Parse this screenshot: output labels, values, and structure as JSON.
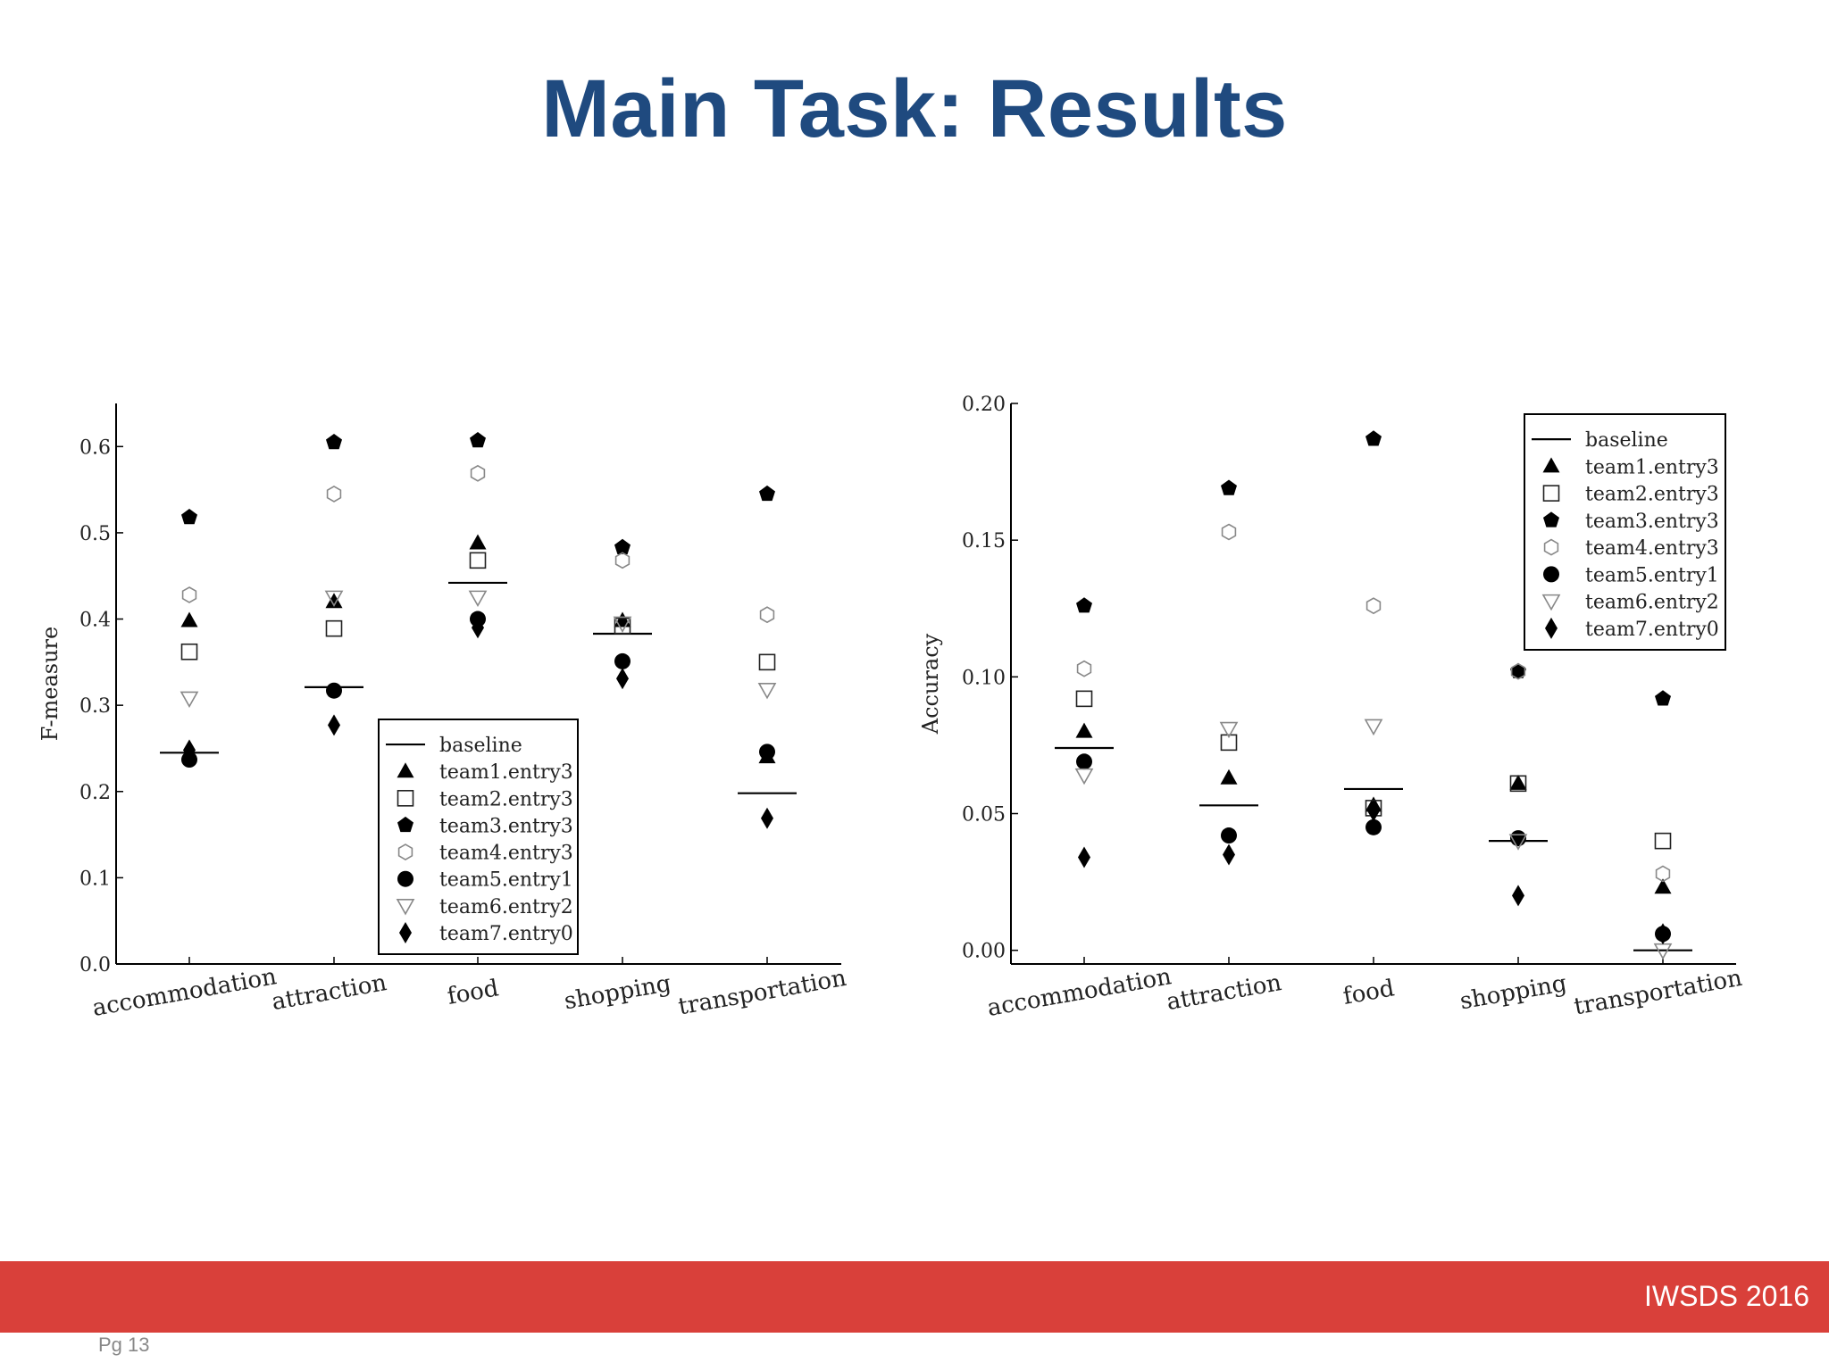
{
  "slide": {
    "title": "Main Task: Results",
    "conference": "IWSDS 2016",
    "page": "Pg 13"
  },
  "colors": {
    "title": "#1f4a7f",
    "footer_bar": "#d9403a",
    "filled_marker": "#000000",
    "hollow_marker": "#888888"
  },
  "chart_data": [
    {
      "type": "scatter",
      "title": "",
      "xlabel": "",
      "ylabel": "F-measure",
      "ylim": [
        0,
        0.65
      ],
      "yticks": [
        0.0,
        0.1,
        0.2,
        0.3,
        0.4,
        0.5,
        0.6
      ],
      "ytick_labels": [
        "0.0",
        "0.1",
        "0.2",
        "0.3",
        "0.4",
        "0.5",
        "0.6"
      ],
      "categories": [
        "accommodation",
        "attraction",
        "food",
        "shopping",
        "transportation"
      ],
      "legend_position": "lower-center",
      "grid": false,
      "series": [
        {
          "name": "baseline",
          "marker": "hline",
          "values": [
            0.245,
            0.321,
            0.442,
            0.383,
            0.198
          ]
        },
        {
          "name": "team1.entry3",
          "marker": "triangle-up-filled",
          "values": [
            0.398,
            0.42,
            0.488,
            0.398,
            0.24
          ]
        },
        {
          "name": "team2.entry3",
          "marker": "square-open",
          "values": [
            0.362,
            0.389,
            0.468,
            0.392,
            0.35
          ]
        },
        {
          "name": "team3.entry3",
          "marker": "pentagon-filled",
          "values": [
            0.518,
            0.605,
            0.607,
            0.483,
            0.545
          ]
        },
        {
          "name": "team4.entry3",
          "marker": "hexagon-open",
          "values": [
            0.428,
            0.545,
            0.569,
            0.468,
            0.405
          ]
        },
        {
          "name": "team5.entry1",
          "marker": "circle-filled",
          "values": [
            0.237,
            0.317,
            0.4,
            0.351,
            0.246
          ]
        },
        {
          "name": "team6.entry2",
          "marker": "triangle-down-open",
          "values": [
            0.308,
            0.425,
            0.425,
            0.395,
            0.318
          ]
        },
        {
          "name": "team7.entry0",
          "marker": "diamond-filled",
          "values": [
            0.248,
            0.277,
            0.39,
            0.331,
            0.169
          ]
        }
      ]
    },
    {
      "type": "scatter",
      "title": "",
      "xlabel": "",
      "ylabel": "Accuracy",
      "ylim": [
        -0.005,
        0.2
      ],
      "yticks": [
        0.0,
        0.05,
        0.1,
        0.15,
        0.2
      ],
      "ytick_labels": [
        "0.00",
        "0.05",
        "0.10",
        "0.15",
        "0.20"
      ],
      "categories": [
        "accommodation",
        "attraction",
        "food",
        "shopping",
        "transportation"
      ],
      "legend_position": "upper-right",
      "grid": false,
      "series": [
        {
          "name": "baseline",
          "marker": "hline",
          "values": [
            0.074,
            0.053,
            0.059,
            0.04,
            0.0
          ]
        },
        {
          "name": "team1.entry3",
          "marker": "triangle-up-filled",
          "values": [
            0.08,
            0.063,
            0.053,
            0.061,
            0.023
          ]
        },
        {
          "name": "team2.entry3",
          "marker": "square-open",
          "values": [
            0.092,
            0.076,
            0.052,
            0.061,
            0.04
          ]
        },
        {
          "name": "team3.entry3",
          "marker": "pentagon-filled",
          "values": [
            0.126,
            0.169,
            0.187,
            0.102,
            0.092
          ]
        },
        {
          "name": "team4.entry3",
          "marker": "hexagon-open",
          "values": [
            0.103,
            0.153,
            0.126,
            0.102,
            0.028
          ]
        },
        {
          "name": "team5.entry1",
          "marker": "circle-filled",
          "values": [
            0.069,
            0.042,
            0.045,
            0.041,
            0.006
          ]
        },
        {
          "name": "team6.entry2",
          "marker": "triangle-down-open",
          "values": [
            0.064,
            0.081,
            0.082,
            0.04,
            0.0
          ]
        },
        {
          "name": "team7.entry0",
          "marker": "diamond-filled",
          "values": [
            0.034,
            0.035,
            0.051,
            0.02,
            0.006
          ]
        }
      ]
    }
  ]
}
